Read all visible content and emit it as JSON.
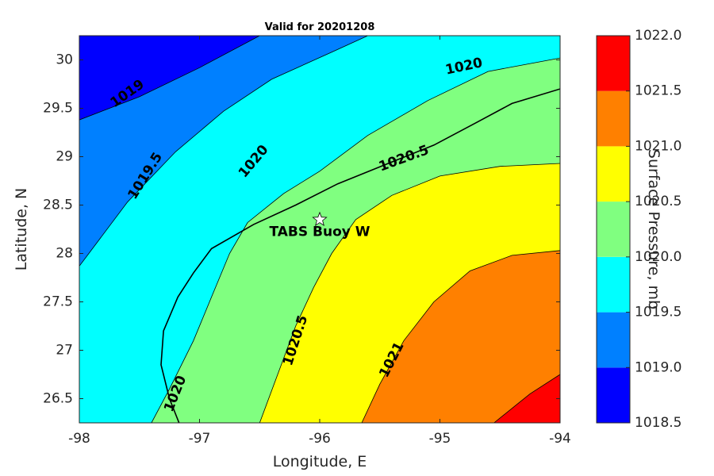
{
  "chart_data": {
    "type": "contour",
    "title": "Valid for 20201208",
    "xlabel": "Longitude, E",
    "ylabel": "Latitude, N",
    "xlim": [
      -98,
      -94
    ],
    "ylim": [
      26.25,
      30.25
    ],
    "x_ticks": [
      -98,
      -97,
      -96,
      -95,
      -94
    ],
    "y_ticks": [
      26.5,
      27,
      27.5,
      28,
      28.5,
      29,
      29.5,
      30
    ],
    "x_tick_labels": [
      "-98",
      "-97",
      "-96",
      "-95",
      "-94"
    ],
    "y_tick_labels": [
      "26.5",
      "27",
      "27.5",
      "28",
      "28.5",
      "29",
      "29.5",
      "30"
    ],
    "colorbar": {
      "label": "Surface Pressure, mb",
      "min": 1018.5,
      "max": 1022.0,
      "ticks": [
        1018.5,
        1019.0,
        1019.5,
        1020.0,
        1020.5,
        1021.0,
        1021.5,
        1022.0
      ],
      "tick_labels": [
        "1018.5",
        "1019.0",
        "1019.5",
        "1020.0",
        "1020.5",
        "1021.0",
        "1021.5",
        "1022.0"
      ],
      "colors": [
        "#0000ff",
        "#0080ff",
        "#00ffff",
        "#80ff80",
        "#ffff00",
        "#ff8000",
        "#ff0000"
      ]
    },
    "contour_levels": [
      1019,
      1019.5,
      1020,
      1020.5,
      1021,
      1021.5
    ],
    "contour_lines": [
      {
        "level": 1019,
        "points": [
          [
            -98,
            29.38
          ],
          [
            -97.5,
            29.62
          ],
          [
            -97,
            29.92
          ],
          [
            -96.5,
            30.25
          ]
        ]
      },
      {
        "level": 1019.5,
        "points": [
          [
            -98,
            27.87
          ],
          [
            -97.6,
            28.53
          ],
          [
            -97.2,
            29.05
          ],
          [
            -96.8,
            29.47
          ],
          [
            -96.4,
            29.8
          ],
          [
            -95.9,
            30.08
          ],
          [
            -95.6,
            30.25
          ]
        ]
      },
      {
        "level": 1020,
        "points": [
          [
            -97.4,
            26.25
          ],
          [
            -97.25,
            26.6
          ],
          [
            -97.05,
            27.1
          ],
          [
            -96.9,
            27.55
          ],
          [
            -96.75,
            28.0
          ],
          [
            -96.6,
            28.32
          ],
          [
            -96.3,
            28.62
          ],
          [
            -96.0,
            28.85
          ],
          [
            -95.6,
            29.22
          ],
          [
            -95.1,
            29.58
          ],
          [
            -94.6,
            29.88
          ],
          [
            -94.0,
            30.02
          ]
        ]
      },
      {
        "level": 1020.5,
        "points": [
          [
            -96.5,
            26.25
          ],
          [
            -96.35,
            26.75
          ],
          [
            -96.2,
            27.25
          ],
          [
            -96.05,
            27.65
          ],
          [
            -95.9,
            28.0
          ],
          [
            -95.7,
            28.35
          ],
          [
            -95.4,
            28.6
          ],
          [
            -95.0,
            28.8
          ],
          [
            -94.5,
            28.9
          ],
          [
            -94.0,
            28.93
          ]
        ]
      },
      {
        "level": 1021,
        "points": [
          [
            -95.65,
            26.25
          ],
          [
            -95.5,
            26.65
          ],
          [
            -95.3,
            27.1
          ],
          [
            -95.05,
            27.5
          ],
          [
            -94.75,
            27.82
          ],
          [
            -94.4,
            27.98
          ],
          [
            -94.0,
            28.03
          ]
        ]
      },
      {
        "level": 1021.5,
        "points": [
          [
            -94.55,
            26.25
          ],
          [
            -94.25,
            26.55
          ],
          [
            -94.0,
            26.75
          ]
        ]
      }
    ],
    "contour_labels": [
      {
        "text": "1019",
        "x": -97.6,
        "y": 29.65,
        "angle": -35
      },
      {
        "text": "1019.5",
        "x": -97.45,
        "y": 28.8,
        "angle": -58
      },
      {
        "text": "1020",
        "x": -96.55,
        "y": 28.95,
        "angle": -50
      },
      {
        "text": "1020",
        "x": -94.8,
        "y": 29.93,
        "angle": -12
      },
      {
        "text": "1020",
        "x": -97.2,
        "y": 26.55,
        "angle": -68
      },
      {
        "text": "1020.5",
        "x": -95.3,
        "y": 28.98,
        "angle": -20
      },
      {
        "text": "1020.5",
        "x": -96.2,
        "y": 27.1,
        "angle": -72
      },
      {
        "text": "1021",
        "x": -95.4,
        "y": 26.9,
        "angle": -63
      }
    ],
    "annotations": [
      {
        "text": "TABS Buoy W",
        "x": -96.0,
        "y": 28.22,
        "marker": "star",
        "marker_x": -96.0,
        "marker_y": 28.35
      }
    ],
    "coastline": [
      [
        -97.17,
        26.25
      ],
      [
        -97.25,
        26.5
      ],
      [
        -97.32,
        26.85
      ],
      [
        -97.3,
        27.2
      ],
      [
        -97.18,
        27.55
      ],
      [
        -97.05,
        27.8
      ],
      [
        -96.9,
        28.05
      ],
      [
        -96.55,
        28.3
      ],
      [
        -96.2,
        28.5
      ],
      [
        -95.85,
        28.72
      ],
      [
        -95.45,
        28.92
      ],
      [
        -95.05,
        29.12
      ],
      [
        -94.7,
        29.35
      ],
      [
        -94.4,
        29.55
      ],
      [
        -94.0,
        29.7
      ]
    ],
    "grid": false
  }
}
